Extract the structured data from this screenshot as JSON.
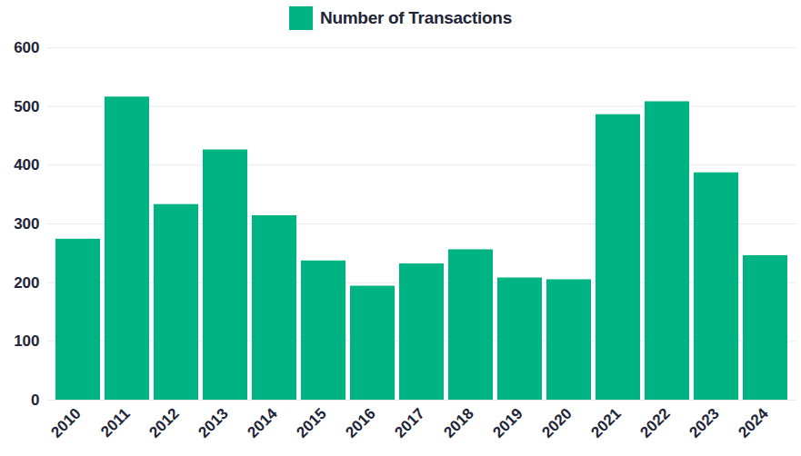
{
  "chart_data": {
    "type": "bar",
    "categories": [
      "2010",
      "2011",
      "2012",
      "2013",
      "2014",
      "2015",
      "2016",
      "2017",
      "2018",
      "2019",
      "2020",
      "2021",
      "2022",
      "2023",
      "2024"
    ],
    "series": [
      {
        "name": "Number of Transactions",
        "color": "#00b383",
        "values": [
          274,
          516,
          333,
          426,
          314,
          237,
          194,
          232,
          256,
          208,
          205,
          486,
          508,
          387,
          246
        ]
      }
    ],
    "ylim": [
      0,
      600
    ],
    "yticks": [
      0,
      100,
      200,
      300,
      400,
      500,
      600
    ],
    "grid": true,
    "legend": "top"
  }
}
